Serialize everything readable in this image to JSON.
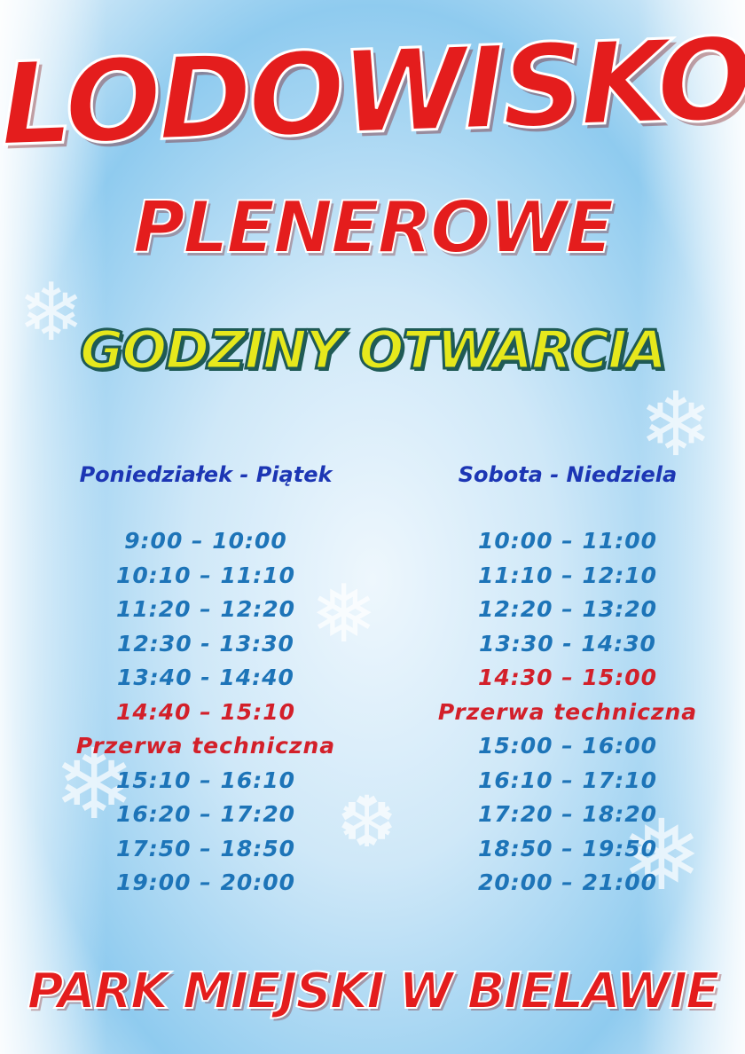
{
  "title": "LODOWISKO",
  "subtitle": "PLENEROWE",
  "heading": "GODZINY OTWARCIA",
  "footer": "PARK MIEJSKI W BIELAWIE",
  "colors": {
    "title_red": "#e41d1d",
    "heading_yellow": "#e6e81c",
    "time_blue": "#1d74b8",
    "header_blue": "#1c36b4",
    "break_red": "#d3202a"
  },
  "weekdays": {
    "header": "Poniedziałek - Piątek",
    "rows": [
      {
        "text": "9:00 – 10:00",
        "highlight": false
      },
      {
        "text": "10:10 – 11:10",
        "highlight": false
      },
      {
        "text": "11:20 – 12:20",
        "highlight": false
      },
      {
        "text": "12:30 - 13:30",
        "highlight": false
      },
      {
        "text": "13:40 - 14:40",
        "highlight": false
      },
      {
        "text": "14:40 – 15:10",
        "highlight": true
      },
      {
        "text": "Przerwa techniczna",
        "highlight": true
      },
      {
        "text": "15:10 – 16:10",
        "highlight": false
      },
      {
        "text": "16:20 – 17:20",
        "highlight": false
      },
      {
        "text": "17:50 – 18:50",
        "highlight": false
      },
      {
        "text": "19:00 – 20:00",
        "highlight": false
      }
    ]
  },
  "weekend": {
    "header": "Sobota - Niedziela",
    "rows": [
      {
        "text": "10:00 – 11:00",
        "highlight": false
      },
      {
        "text": "11:10 – 12:10",
        "highlight": false
      },
      {
        "text": "12:20 – 13:20",
        "highlight": false
      },
      {
        "text": "13:30 - 14:30",
        "highlight": false
      },
      {
        "text": "14:30 – 15:00",
        "highlight": true
      },
      {
        "text": "Przerwa techniczna",
        "highlight": true
      },
      {
        "text": "15:00 – 16:00",
        "highlight": false
      },
      {
        "text": "16:10 – 17:10",
        "highlight": false
      },
      {
        "text": "17:20 – 18:20",
        "highlight": false
      },
      {
        "text": "18:50 – 19:50",
        "highlight": false
      },
      {
        "text": "20:00 – 21:00",
        "highlight": false
      }
    ]
  }
}
